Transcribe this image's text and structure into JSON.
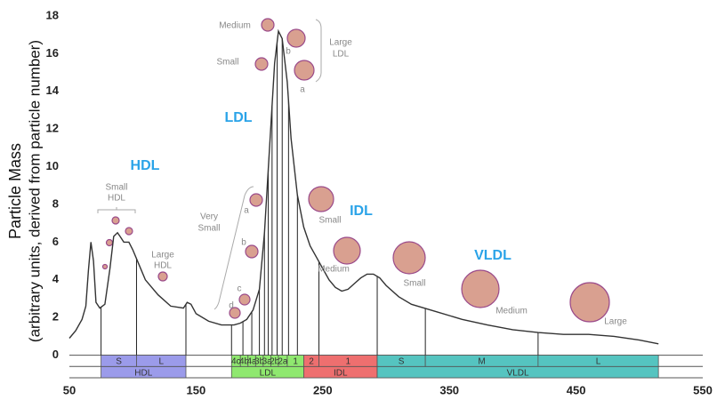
{
  "chart_data": {
    "type": "line",
    "ylabel": [
      "Particle Mass",
      "(arbitrary units, derived from particle number)"
    ],
    "xlim": [
      50,
      550
    ],
    "ylim": [
      -1.2,
      18
    ],
    "xticks": [
      50,
      150,
      250,
      350,
      450,
      550
    ],
    "yticks": [
      0,
      2,
      4,
      6,
      8,
      10,
      12,
      14,
      16,
      18
    ],
    "color": "#333333",
    "x": [
      50,
      55,
      60,
      63,
      65,
      67,
      69,
      71,
      74,
      78,
      82,
      85,
      88,
      90,
      93,
      97,
      100,
      105,
      110,
      120,
      130,
      140,
      143,
      146,
      150,
      160,
      170,
      180,
      185,
      190,
      195,
      200,
      204,
      208,
      212,
      215,
      218,
      222,
      225,
      230,
      235,
      240,
      245,
      250,
      255,
      260,
      265,
      270,
      275,
      280,
      285,
      290,
      295,
      300,
      310,
      320,
      330,
      340,
      360,
      380,
      400,
      420,
      440,
      460,
      480,
      500,
      515
    ],
    "values": [
      0.9,
      1.3,
      1.9,
      2.6,
      4.5,
      6.0,
      5.0,
      2.8,
      2.5,
      2.7,
      4.6,
      6.3,
      6.5,
      6.3,
      6.0,
      6.0,
      5.6,
      4.8,
      4.0,
      3.2,
      2.6,
      2.5,
      2.8,
      2.7,
      2.2,
      1.8,
      1.6,
      1.6,
      1.7,
      1.9,
      2.4,
      3.5,
      6.5,
      11.0,
      15.5,
      17.2,
      16.8,
      14.5,
      11.5,
      8.5,
      6.8,
      5.8,
      5.2,
      4.6,
      4.0,
      3.6,
      3.4,
      3.5,
      3.8,
      4.1,
      4.3,
      4.3,
      4.1,
      3.7,
      3.1,
      2.7,
      2.5,
      2.3,
      1.9,
      1.6,
      1.35,
      1.2,
      1.1,
      1.1,
      1.0,
      0.8,
      0.6
    ],
    "dividers": [
      75,
      103,
      142,
      178,
      187,
      194,
      200,
      204,
      207,
      210,
      214,
      218,
      223,
      230,
      247,
      293,
      331,
      420
    ],
    "bands": [
      {
        "label": "HDL",
        "color": "#9b9bea",
        "range": [
          75,
          142
        ],
        "subclasses": [
          {
            "label": "S",
            "range": [
              75,
              103
            ]
          },
          {
            "label": "L",
            "range": [
              103,
              142
            ]
          }
        ]
      },
      {
        "label": "LDL",
        "color": "#8fe86f",
        "range": [
          178,
          235
        ],
        "subclasses": [
          {
            "label": "4c",
            "range": [
              178,
              185
            ]
          },
          {
            "label": "4b",
            "range": [
              185,
              191
            ]
          },
          {
            "label": "4a",
            "range": [
              191,
              197
            ]
          },
          {
            "label": "3b",
            "range": [
              197,
              203
            ]
          },
          {
            "label": "3a",
            "range": [
              203,
              209
            ]
          },
          {
            "label": "2b",
            "range": [
              209,
              215
            ]
          },
          {
            "label": "2a",
            "range": [
              215,
              222
            ]
          },
          {
            "label": "1",
            "range": [
              222,
              235
            ]
          }
        ]
      },
      {
        "label": "IDL",
        "color": "#ee6f6f",
        "range": [
          235,
          293
        ],
        "subclasses": [
          {
            "label": "2",
            "range": [
              235,
              247
            ]
          },
          {
            "label": "1",
            "range": [
              247,
              293
            ]
          }
        ]
      },
      {
        "label": "VLDL",
        "color": "#55c4c0",
        "range": [
          293,
          515
        ],
        "subclasses": [
          {
            "label": "S",
            "range": [
              293,
              331
            ]
          },
          {
            "label": "M",
            "range": [
              331,
              420
            ]
          },
          {
            "label": "L",
            "range": [
              420,
              515
            ]
          }
        ]
      }
    ],
    "class_labels": [
      "HDL",
      "LDL",
      "IDL",
      "VLDL"
    ],
    "annotations": [
      "Small",
      "HDL",
      "Large",
      "HDL",
      "Very",
      "Small",
      "a",
      "b",
      "c",
      "d",
      "Medium",
      "Small",
      "Large",
      "LDL",
      "b",
      "a",
      "Small",
      "Medium",
      "Small",
      "Medium",
      "Large"
    ]
  }
}
